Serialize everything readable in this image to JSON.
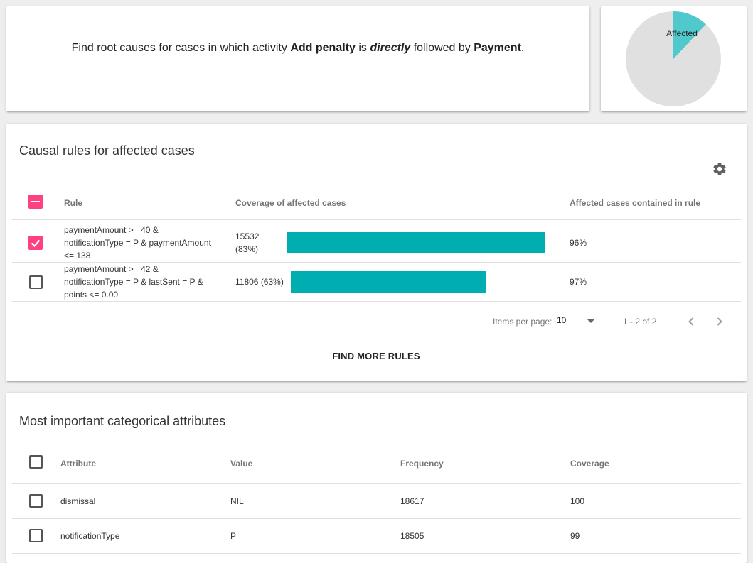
{
  "query": {
    "prefix": "Find root causes for cases in which activity ",
    "activity_a": "Add penalty",
    "is": " is ",
    "relation": "directly",
    "followed": " followed by ",
    "activity_b": "Payment",
    "suffix": "."
  },
  "pie": {
    "label": "Affected",
    "affected_fraction": 0.12,
    "colors": {
      "affected": "#4fc9cc",
      "rest": "#e0e0e0"
    }
  },
  "rules_card": {
    "title": "Causal rules for affected cases",
    "settings_icon": "gear-icon",
    "columns": {
      "rule": "Rule",
      "coverage": "Coverage of affected cases",
      "contained": "Affected cases contained in rule"
    },
    "rows": [
      {
        "checked": true,
        "rule_lines": [
          "paymentAmount >= 40 &",
          "notificationType = P & paymentAmount",
          "<= 138"
        ],
        "coverage_lines": [
          "15532",
          "(83%)"
        ],
        "coverage_fraction": 0.83,
        "contained": "96%"
      },
      {
        "checked": false,
        "rule_lines": [
          "paymentAmount >= 42 &",
          "notificationType = P & lastSent = P &",
          "points <= 0.00"
        ],
        "coverage_lines": [
          "11806 (63%)"
        ],
        "coverage_fraction": 0.63,
        "contained": "97%"
      }
    ],
    "paginator": {
      "items_per_page_label": "Items per page:",
      "items_per_page_value": "10",
      "range_label": "1 - 2 of 2"
    },
    "find_more_label": "FIND MORE RULES",
    "bar_color": "#00adb0",
    "accent_color": "#ff4081"
  },
  "attributes_card": {
    "title": "Most important categorical attributes",
    "columns": {
      "attribute": "Attribute",
      "value": "Value",
      "frequency": "Frequency",
      "coverage": "Coverage"
    },
    "rows": [
      {
        "attribute": "dismissal",
        "value": "NIL",
        "frequency": "18617",
        "coverage": "100"
      },
      {
        "attribute": "notificationType",
        "value": "P",
        "frequency": "18505",
        "coverage": "99"
      }
    ]
  }
}
